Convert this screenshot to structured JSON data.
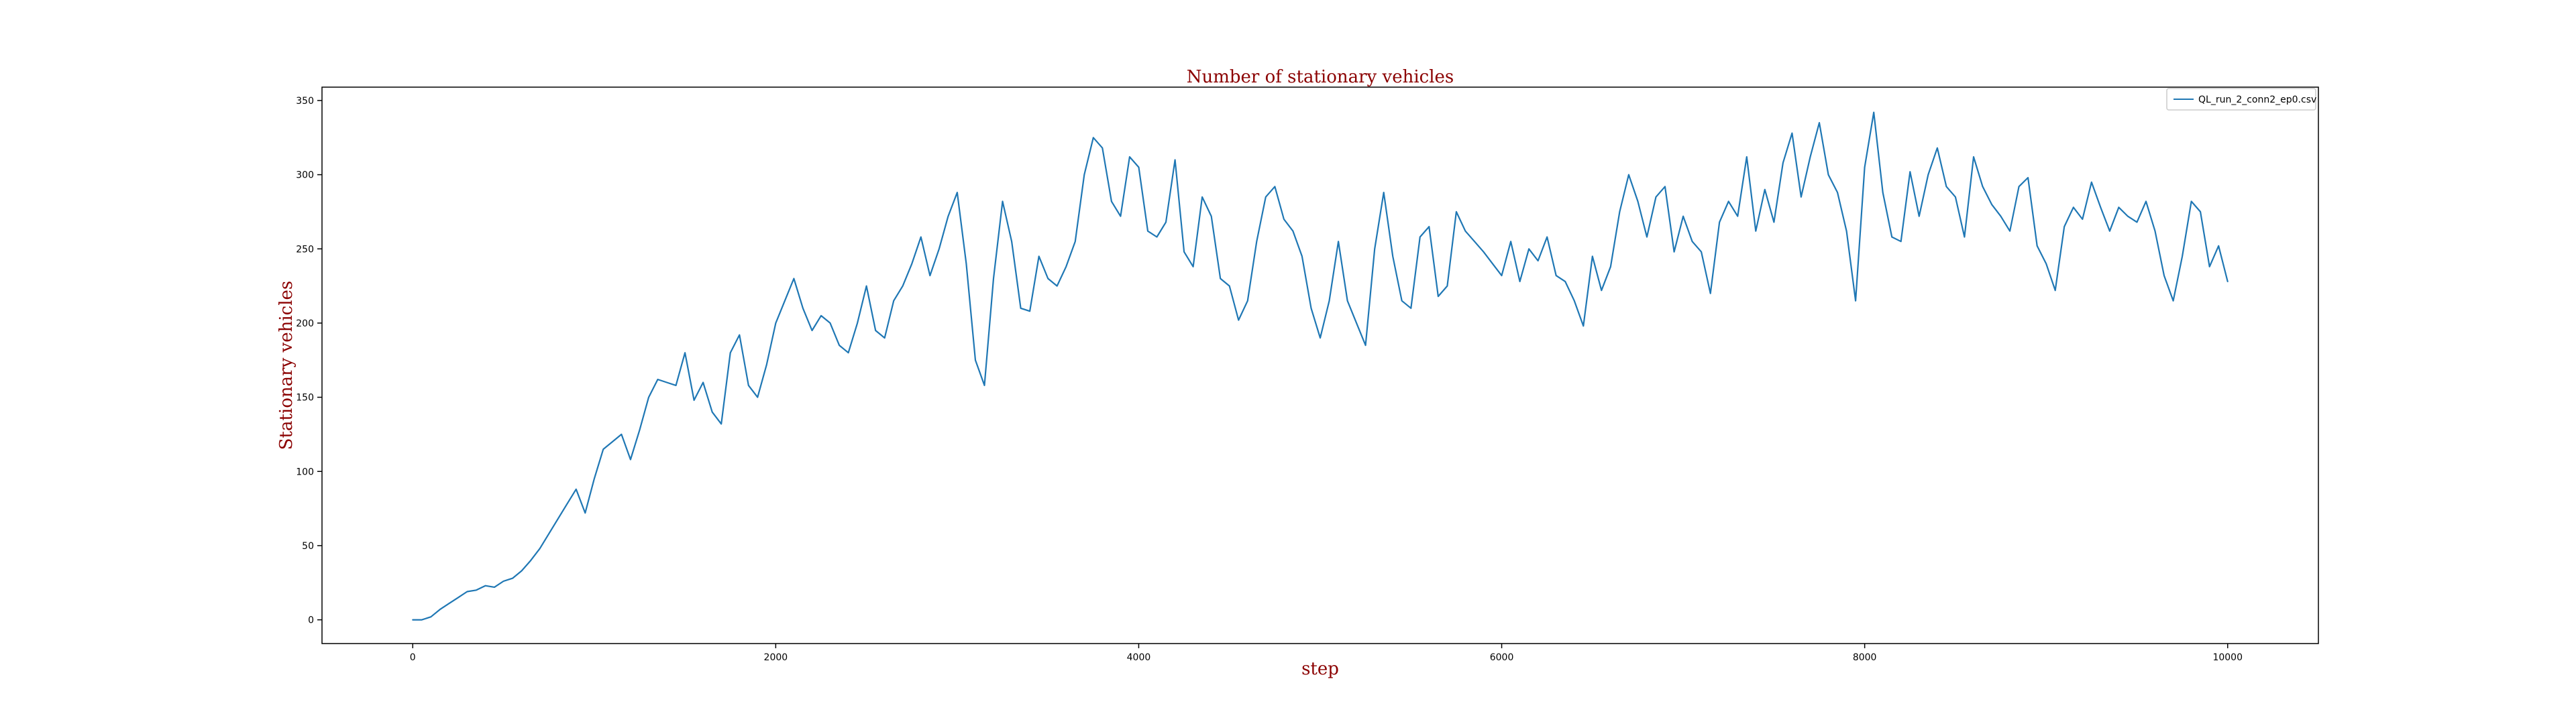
{
  "chart_data": {
    "type": "line",
    "title": "Number of stationary vehicles",
    "xlabel": "step",
    "ylabel": "Stationary vehicles",
    "xlim": [
      -500,
      10500
    ],
    "ylim": [
      -16,
      359
    ],
    "xticks": [
      0,
      2000,
      4000,
      6000,
      8000,
      10000
    ],
    "yticks": [
      0,
      50,
      100,
      150,
      200,
      250,
      300,
      350
    ],
    "grid": false,
    "legend_position": "top-right",
    "title_color": "#8b0000",
    "label_color": "#8b0000",
    "series": [
      {
        "name": "QL_run_2_conn2_ep0.csv",
        "color": "#1f77b4",
        "points": [
          [
            0,
            0
          ],
          [
            50,
            0
          ],
          [
            100,
            2
          ],
          [
            150,
            7
          ],
          [
            200,
            11
          ],
          [
            250,
            15
          ],
          [
            300,
            19
          ],
          [
            350,
            20
          ],
          [
            400,
            23
          ],
          [
            450,
            22
          ],
          [
            500,
            26
          ],
          [
            550,
            28
          ],
          [
            600,
            33
          ],
          [
            650,
            40
          ],
          [
            700,
            48
          ],
          [
            750,
            58
          ],
          [
            800,
            68
          ],
          [
            850,
            78
          ],
          [
            900,
            88
          ],
          [
            950,
            72
          ],
          [
            1000,
            95
          ],
          [
            1050,
            115
          ],
          [
            1100,
            120
          ],
          [
            1150,
            125
          ],
          [
            1200,
            108
          ],
          [
            1250,
            128
          ],
          [
            1300,
            150
          ],
          [
            1350,
            162
          ],
          [
            1400,
            160
          ],
          [
            1450,
            158
          ],
          [
            1500,
            180
          ],
          [
            1550,
            148
          ],
          [
            1600,
            160
          ],
          [
            1650,
            140
          ],
          [
            1700,
            132
          ],
          [
            1750,
            180
          ],
          [
            1800,
            192
          ],
          [
            1850,
            158
          ],
          [
            1900,
            150
          ],
          [
            1950,
            172
          ],
          [
            2000,
            200
          ],
          [
            2050,
            215
          ],
          [
            2100,
            230
          ],
          [
            2150,
            210
          ],
          [
            2200,
            195
          ],
          [
            2250,
            205
          ],
          [
            2300,
            200
          ],
          [
            2350,
            185
          ],
          [
            2400,
            180
          ],
          [
            2450,
            200
          ],
          [
            2500,
            225
          ],
          [
            2550,
            195
          ],
          [
            2600,
            190
          ],
          [
            2650,
            215
          ],
          [
            2700,
            225
          ],
          [
            2750,
            240
          ],
          [
            2800,
            258
          ],
          [
            2850,
            232
          ],
          [
            2900,
            250
          ],
          [
            2950,
            272
          ],
          [
            3000,
            288
          ],
          [
            3050,
            240
          ],
          [
            3100,
            175
          ],
          [
            3150,
            158
          ],
          [
            3200,
            230
          ],
          [
            3250,
            282
          ],
          [
            3300,
            255
          ],
          [
            3350,
            210
          ],
          [
            3400,
            208
          ],
          [
            3450,
            245
          ],
          [
            3500,
            230
          ],
          [
            3550,
            225
          ],
          [
            3600,
            238
          ],
          [
            3650,
            255
          ],
          [
            3700,
            300
          ],
          [
            3750,
            325
          ],
          [
            3800,
            318
          ],
          [
            3850,
            282
          ],
          [
            3900,
            272
          ],
          [
            3950,
            312
          ],
          [
            4000,
            305
          ],
          [
            4050,
            262
          ],
          [
            4100,
            258
          ],
          [
            4150,
            268
          ],
          [
            4200,
            310
          ],
          [
            4250,
            248
          ],
          [
            4300,
            238
          ],
          [
            4350,
            285
          ],
          [
            4400,
            272
          ],
          [
            4450,
            230
          ],
          [
            4500,
            225
          ],
          [
            4550,
            202
          ],
          [
            4600,
            215
          ],
          [
            4650,
            255
          ],
          [
            4700,
            285
          ],
          [
            4750,
            292
          ],
          [
            4800,
            270
          ],
          [
            4850,
            262
          ],
          [
            4900,
            245
          ],
          [
            4950,
            210
          ],
          [
            5000,
            190
          ],
          [
            5050,
            215
          ],
          [
            5100,
            255
          ],
          [
            5150,
            215
          ],
          [
            5200,
            200
          ],
          [
            5250,
            185
          ],
          [
            5300,
            250
          ],
          [
            5350,
            288
          ],
          [
            5400,
            245
          ],
          [
            5450,
            215
          ],
          [
            5500,
            210
          ],
          [
            5550,
            258
          ],
          [
            5600,
            265
          ],
          [
            5650,
            218
          ],
          [
            5700,
            225
          ],
          [
            5750,
            275
          ],
          [
            5800,
            262
          ],
          [
            5850,
            255
          ],
          [
            5900,
            248
          ],
          [
            5950,
            240
          ],
          [
            6000,
            232
          ],
          [
            6050,
            255
          ],
          [
            6100,
            228
          ],
          [
            6150,
            250
          ],
          [
            6200,
            242
          ],
          [
            6250,
            258
          ],
          [
            6300,
            232
          ],
          [
            6350,
            228
          ],
          [
            6400,
            215
          ],
          [
            6450,
            198
          ],
          [
            6500,
            245
          ],
          [
            6550,
            222
          ],
          [
            6600,
            238
          ],
          [
            6650,
            275
          ],
          [
            6700,
            300
          ],
          [
            6750,
            282
          ],
          [
            6800,
            258
          ],
          [
            6850,
            285
          ],
          [
            6900,
            292
          ],
          [
            6950,
            248
          ],
          [
            7000,
            272
          ],
          [
            7050,
            255
          ],
          [
            7100,
            248
          ],
          [
            7150,
            220
          ],
          [
            7200,
            268
          ],
          [
            7250,
            282
          ],
          [
            7300,
            272
          ],
          [
            7350,
            312
          ],
          [
            7400,
            262
          ],
          [
            7450,
            290
          ],
          [
            7500,
            268
          ],
          [
            7550,
            308
          ],
          [
            7600,
            328
          ],
          [
            7650,
            285
          ],
          [
            7700,
            312
          ],
          [
            7750,
            335
          ],
          [
            7800,
            300
          ],
          [
            7850,
            288
          ],
          [
            7900,
            262
          ],
          [
            7950,
            215
          ],
          [
            8000,
            305
          ],
          [
            8050,
            342
          ],
          [
            8100,
            288
          ],
          [
            8150,
            258
          ],
          [
            8200,
            255
          ],
          [
            8250,
            302
          ],
          [
            8300,
            272
          ],
          [
            8350,
            300
          ],
          [
            8400,
            318
          ],
          [
            8450,
            292
          ],
          [
            8500,
            285
          ],
          [
            8550,
            258
          ],
          [
            8600,
            312
          ],
          [
            8650,
            292
          ],
          [
            8700,
            280
          ],
          [
            8750,
            272
          ],
          [
            8800,
            262
          ],
          [
            8850,
            292
          ],
          [
            8900,
            298
          ],
          [
            8950,
            252
          ],
          [
            9000,
            240
          ],
          [
            9050,
            222
          ],
          [
            9100,
            265
          ],
          [
            9150,
            278
          ],
          [
            9200,
            270
          ],
          [
            9250,
            295
          ],
          [
            9300,
            278
          ],
          [
            9350,
            262
          ],
          [
            9400,
            278
          ],
          [
            9450,
            272
          ],
          [
            9500,
            268
          ],
          [
            9550,
            282
          ],
          [
            9600,
            262
          ],
          [
            9650,
            232
          ],
          [
            9700,
            215
          ],
          [
            9750,
            245
          ],
          [
            9800,
            282
          ],
          [
            9850,
            275
          ],
          [
            9900,
            238
          ],
          [
            9950,
            252
          ],
          [
            10000,
            228
          ]
        ]
      }
    ]
  }
}
